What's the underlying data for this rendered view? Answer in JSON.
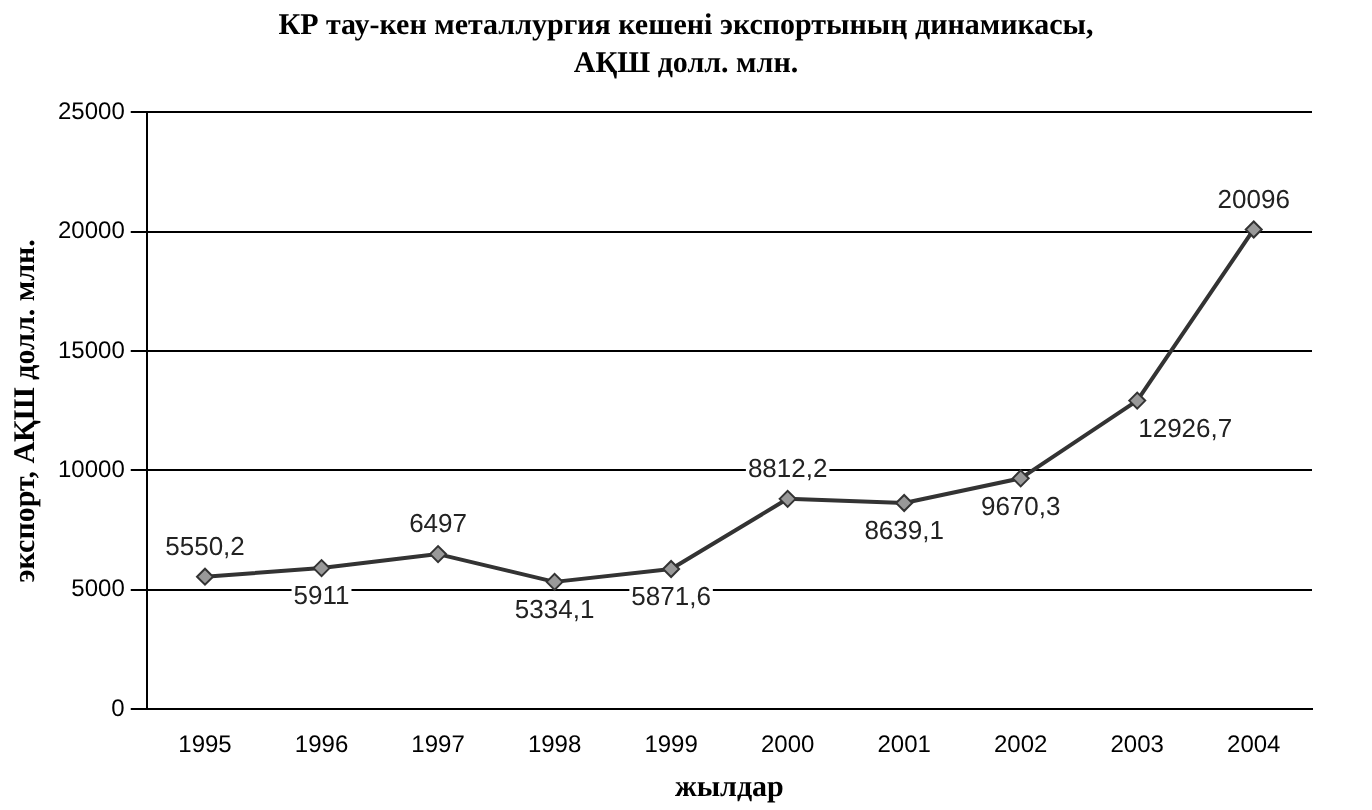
{
  "chart_data": {
    "type": "line",
    "title": "КР тау-кен металлургия кешені экспортының динамикасы, АҚШ долл. млн.",
    "xlabel": "жылдар",
    "ylabel": "экспорт, АҚШ долл. млн.",
    "categories": [
      "1995",
      "1996",
      "1997",
      "1998",
      "1999",
      "2000",
      "2001",
      "2002",
      "2003",
      "2004"
    ],
    "series": [
      {
        "color": "#333333",
        "values": [
          5550.2,
          5911,
          6497,
          5334.1,
          5871.6,
          8812.2,
          8639.1,
          9670.3,
          12926.7,
          20096
        ],
        "value_labels": [
          "5550,2",
          "5911",
          "6497",
          "5334,1",
          "5871,6",
          "8812,2",
          "8639,1",
          "9670,3",
          "12926,7",
          "20096"
        ]
      }
    ],
    "ylim": [
      0,
      25000
    ],
    "yticks": [
      0,
      5000,
      10000,
      15000,
      20000,
      25000
    ],
    "grid": "y",
    "legend": false,
    "marker": "diamond",
    "line_style": "solid"
  }
}
